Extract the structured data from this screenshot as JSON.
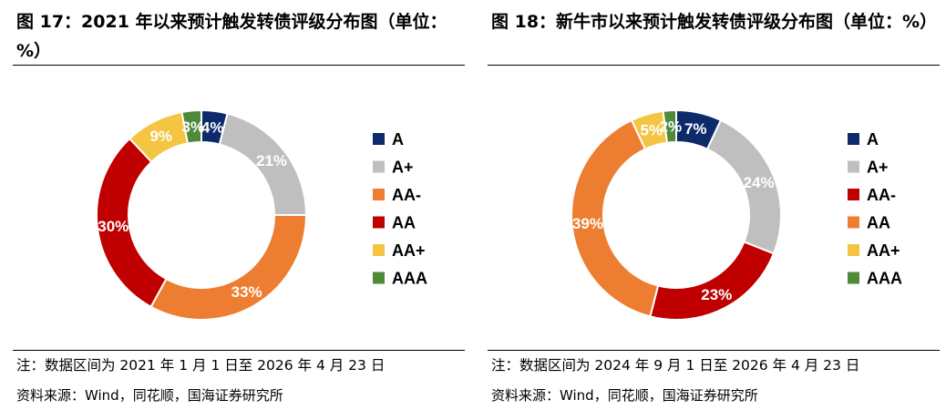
{
  "figures": [
    {
      "title": "图 17：2021 年以来预计触发转债评级分布图（单位：%）",
      "note": "注：数据区间为 2021 年 1 月 1 日至 2026 年 4 月 23 日",
      "source": "资料来源：Wind，同花顺，国海证券研究所"
    },
    {
      "title": "图 18：新牛市以来预计触发转债评级分布图（单位：%）",
      "note": "注：数据区间为 2024 年 9 月 1 日至 2026 年 4 月 23 日",
      "source": "资料来源：Wind，同花顺，国海证券研究所"
    }
  ],
  "chart_data": [
    {
      "type": "pie",
      "variant": "donut",
      "title": "图 17：2021 年以来预计触发转债评级分布图（单位：%）",
      "unit": "%",
      "legend_position": "right",
      "slices": [
        {
          "label": "A",
          "value": 4,
          "value_label": "4%",
          "color": "#0d2a6b"
        },
        {
          "label": "A+",
          "value": 21,
          "value_label": "21%",
          "color": "#bfbfbf"
        },
        {
          "label": "AA-",
          "value": 33,
          "value_label": "33%",
          "color": "#ed7d31"
        },
        {
          "label": "AA",
          "value": 30,
          "value_label": "30%",
          "color": "#c00000"
        },
        {
          "label": "AA+",
          "value": 9,
          "value_label": "9%",
          "color": "#f4c542"
        },
        {
          "label": "AAA",
          "value": 3,
          "value_label": "3%",
          "color": "#4e8a3a"
        }
      ]
    },
    {
      "type": "pie",
      "variant": "donut",
      "title": "图 18：新牛市以来预计触发转债评级分布图（单位：%）",
      "unit": "%",
      "legend_position": "right",
      "slices": [
        {
          "label": "A",
          "value": 7,
          "value_label": "7%",
          "color": "#0d2a6b"
        },
        {
          "label": "A+",
          "value": 24,
          "value_label": "24%",
          "color": "#bfbfbf"
        },
        {
          "label": "AA-",
          "value": 23,
          "value_label": "23%",
          "color": "#c00000"
        },
        {
          "label": "AA",
          "value": 39,
          "value_label": "39%",
          "color": "#ed7d31"
        },
        {
          "label": "AA+",
          "value": 5,
          "value_label": "5%",
          "color": "#f4c542"
        },
        {
          "label": "AAA",
          "value": 2,
          "value_label": "2%",
          "color": "#4e8a3a"
        }
      ]
    }
  ]
}
